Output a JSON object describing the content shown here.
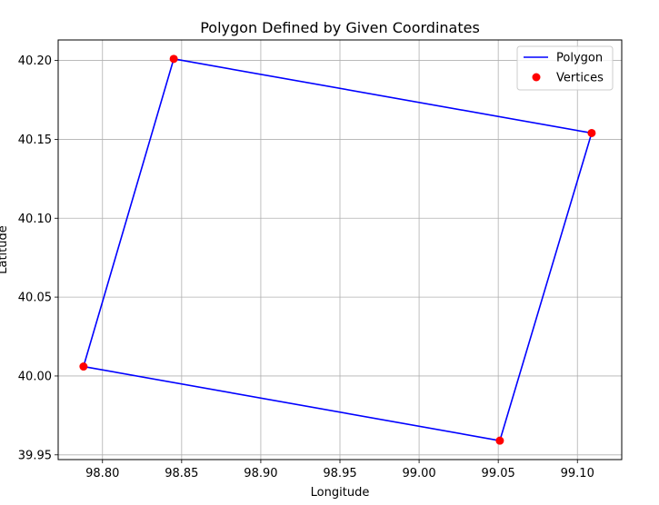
{
  "chart_data": {
    "type": "line",
    "title": "Polygon Defined by Given Coordinates",
    "xlabel": "Longitude",
    "ylabel": "Latitude",
    "xlim": [
      98.772,
      99.128
    ],
    "ylim": [
      39.947,
      40.213
    ],
    "grid": true,
    "legend": {
      "placement": "top-right",
      "entries": [
        "Polygon",
        "Vertices"
      ]
    },
    "x_ticks": [
      98.8,
      98.85,
      98.9,
      98.95,
      99.0,
      99.05,
      99.1
    ],
    "x_tick_labels": [
      "98.80",
      "98.85",
      "98.90",
      "98.95",
      "99.00",
      "99.05",
      "99.10"
    ],
    "y_ticks": [
      39.95,
      40.0,
      40.05,
      40.1,
      40.15,
      40.2
    ],
    "y_tick_labels": [
      "39.95",
      "40.00",
      "40.05",
      "40.10",
      "40.15",
      "40.20"
    ],
    "series": [
      {
        "name": "Polygon",
        "kind": "line",
        "color": "#0000ff",
        "points": [
          {
            "x": 98.845,
            "y": 40.201
          },
          {
            "x": 99.109,
            "y": 40.154
          },
          {
            "x": 99.051,
            "y": 39.959
          },
          {
            "x": 98.788,
            "y": 40.006
          },
          {
            "x": 98.845,
            "y": 40.201
          }
        ]
      },
      {
        "name": "Vertices",
        "kind": "scatter",
        "color": "#ff0000",
        "points": [
          {
            "x": 98.845,
            "y": 40.201
          },
          {
            "x": 99.109,
            "y": 40.154
          },
          {
            "x": 99.051,
            "y": 39.959
          },
          {
            "x": 98.788,
            "y": 40.006
          }
        ]
      }
    ]
  }
}
